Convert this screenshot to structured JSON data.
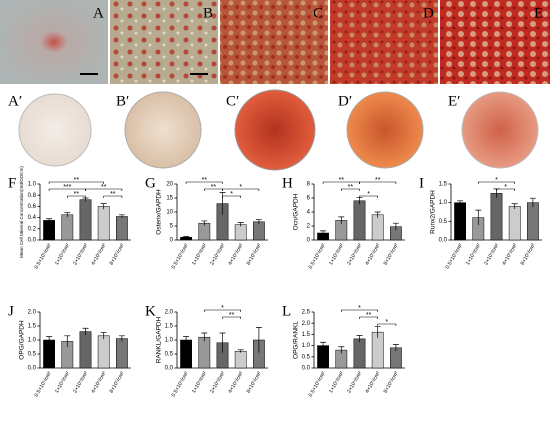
{
  "photos": [
    {
      "label": "A"
    },
    {
      "label": "B"
    },
    {
      "label": "C"
    },
    {
      "label": "D"
    },
    {
      "label": "E"
    }
  ],
  "dishes": [
    {
      "label": "A′"
    },
    {
      "label": "B′"
    },
    {
      "label": "C′"
    },
    {
      "label": "D′"
    },
    {
      "label": "E′"
    }
  ],
  "chart_data": [
    {
      "type": "bar",
      "panel": "F",
      "y_label": "Mean Cell Mineral Concentration(nM/OD/cm)",
      "categories": [
        "0.5×10⁵/cm²",
        "1×10⁵/cm²",
        "2×10⁵/cm²",
        "4×10⁵/cm²",
        "8×10⁵/cm²"
      ],
      "colors": [
        "#000000",
        "#999999",
        "#666666",
        "#cccccc",
        "#777777"
      ],
      "values": [
        0.35,
        0.45,
        0.72,
        0.6,
        0.42
      ],
      "errors": [
        0.03,
        0.04,
        0.03,
        0.05,
        0.03
      ],
      "ylim": [
        0,
        1.0
      ],
      "yticks": [
        {
          "value": 0,
          "label": "0.0"
        },
        0.2,
        0.4,
        0.6,
        0.8,
        {
          "value": 1.0,
          "label": "1.0"
        }
      ],
      "annotations": [
        "**",
        "***",
        "**",
        "**",
        "**"
      ]
    },
    {
      "type": "bar",
      "panel": "G",
      "y_label": "Osterix/GAPDH",
      "categories": [
        "0.5×10⁵/cm²",
        "1×10⁵/cm²",
        "2×10⁵/cm²",
        "4×10⁵/cm²",
        "8×10⁵/cm²"
      ],
      "colors": [
        "#000000",
        "#999999",
        "#666666",
        "#cccccc",
        "#777777"
      ],
      "values": [
        1,
        6,
        13,
        5.5,
        6.5
      ],
      "errors": [
        0.3,
        0.8,
        4,
        0.7,
        0.8
      ],
      "ylim": [
        0,
        20
      ],
      "yticks": [
        0,
        5,
        10,
        15,
        20
      ],
      "annotations": [
        "**",
        "**",
        "*",
        "*"
      ]
    },
    {
      "type": "bar",
      "panel": "H",
      "y_label": "Ocn/GAPDH",
      "categories": [
        "0.5×10⁵/cm²",
        "1×10⁵/cm²",
        "2×10⁵/cm²",
        "4×10⁵/cm²",
        "8×10⁵/cm²"
      ],
      "colors": [
        "#000000",
        "#999999",
        "#666666",
        "#cccccc",
        "#777777"
      ],
      "values": [
        1,
        2.8,
        5.6,
        3.6,
        1.9
      ],
      "errors": [
        0.3,
        0.5,
        0.5,
        0.4,
        0.5
      ],
      "ylim": [
        0,
        8
      ],
      "yticks": [
        0,
        2,
        4,
        6,
        8
      ],
      "annotations": [
        "**",
        "**",
        "*",
        "**"
      ]
    },
    {
      "type": "bar",
      "panel": "I",
      "y_label": "Runx2/GAPDH",
      "categories": [
        "0.5×10⁵/cm²",
        "1×10⁵/cm²",
        "2×10⁵/cm²",
        "4×10⁵/cm²",
        "8×10⁵/cm²"
      ],
      "colors": [
        "#000000",
        "#999999",
        "#666666",
        "#cccccc",
        "#777777"
      ],
      "values": [
        1.0,
        0.6,
        1.25,
        0.9,
        1.0
      ],
      "errors": [
        0.05,
        0.2,
        0.12,
        0.07,
        0.12
      ],
      "ylim": [
        0,
        1.5
      ],
      "yticks": [
        {
          "value": 0,
          "label": "0.0"
        },
        0.5,
        {
          "value": 1,
          "label": "1.0"
        },
        1.5
      ],
      "annotations": [
        "*",
        "*"
      ]
    },
    {
      "type": "bar",
      "panel": "J",
      "y_label": "OPG/GAPDH",
      "categories": [
        "0.5×10⁵/cm²",
        "1×10⁵/cm²",
        "2×10⁵/cm²",
        "4×10⁵/cm²",
        "8×10⁵/cm²"
      ],
      "colors": [
        "#000000",
        "#999999",
        "#666666",
        "#cccccc",
        "#777777"
      ],
      "values": [
        1.0,
        0.95,
        1.3,
        1.15,
        1.05
      ],
      "errors": [
        0.12,
        0.2,
        0.12,
        0.12,
        0.1
      ],
      "ylim": [
        0,
        2.0
      ],
      "yticks": [
        {
          "value": 0,
          "label": "0.0"
        },
        0.5,
        {
          "value": 1,
          "label": "1.0"
        },
        1.5,
        {
          "value": 2,
          "label": "2.0"
        }
      ],
      "annotations": []
    },
    {
      "type": "bar",
      "panel": "K",
      "y_label": "RANKL/GAPDH",
      "categories": [
        "0.5×10⁵/cm²",
        "1×10⁵/cm²",
        "2×10⁵/cm²",
        "4×10⁵/cm²",
        "8×10⁵/cm²"
      ],
      "colors": [
        "#000000",
        "#999999",
        "#666666",
        "#cccccc",
        "#777777"
      ],
      "values": [
        1.0,
        1.1,
        0.9,
        0.6,
        1.0
      ],
      "errors": [
        0.12,
        0.15,
        0.35,
        0.05,
        0.45
      ],
      "ylim": [
        0,
        2.0
      ],
      "yticks": [
        {
          "value": 0,
          "label": "0.0"
        },
        0.5,
        {
          "value": 1,
          "label": "1.0"
        },
        1.5,
        {
          "value": 2,
          "label": "2.0"
        }
      ],
      "annotations": [
        "*",
        "**"
      ]
    },
    {
      "type": "bar",
      "panel": "L",
      "y_label": "OPG/RANKL",
      "categories": [
        "0.5×10⁵/cm²",
        "1×10⁵/cm²",
        "2×10⁵/cm²",
        "4×10⁵/cm²",
        "8×10⁵/cm²"
      ],
      "colors": [
        "#000000",
        "#999999",
        "#666666",
        "#cccccc",
        "#777777"
      ],
      "values": [
        1.0,
        0.8,
        1.3,
        1.6,
        0.9
      ],
      "errors": [
        0.15,
        0.15,
        0.15,
        0.25,
        0.15
      ],
      "ylim": [
        0,
        2.5
      ],
      "yticks": [
        {
          "value": 0,
          "label": "0.0"
        },
        0.5,
        {
          "value": 1,
          "label": "1.0"
        },
        1.5,
        {
          "value": 2,
          "label": "2.0"
        },
        2.5
      ],
      "annotations": [
        "*",
        "**",
        "*"
      ]
    }
  ]
}
